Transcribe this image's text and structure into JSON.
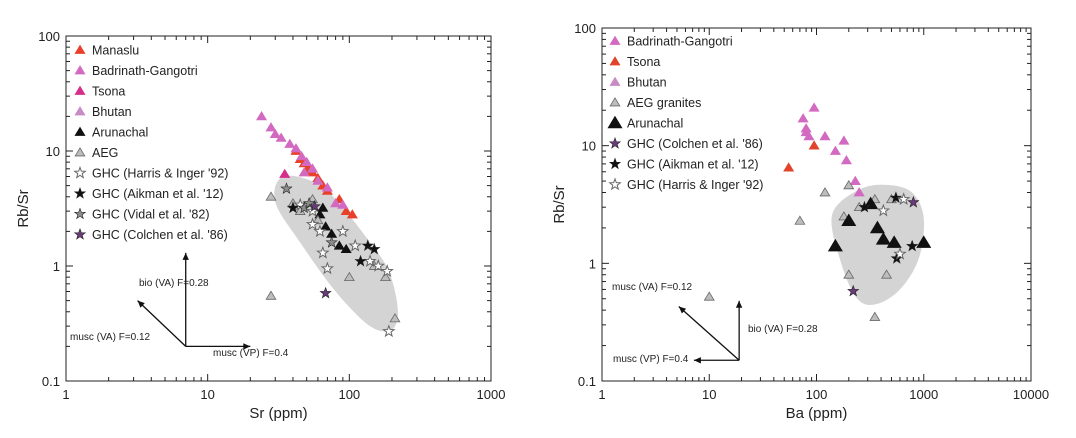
{
  "chart_data": [
    {
      "type": "scatter",
      "xlabel": "Sr (ppm)",
      "ylabel": "Rb/Sr",
      "xscale": "log",
      "yscale": "log",
      "xlim": [
        1,
        1000
      ],
      "ylim": [
        0.1,
        100
      ],
      "xticks": [
        "1",
        "10",
        "100",
        "1000"
      ],
      "yticks": [
        "0.1",
        "1",
        "10",
        "100"
      ],
      "legend_position": "top-left",
      "series": [
        {
          "name": "Manaslu",
          "marker": "triangle",
          "color": "#e8402a",
          "points": [
            [
              42,
              10
            ],
            [
              45,
              8.5
            ],
            [
              48,
              7.8
            ],
            [
              52,
              7.0
            ],
            [
              55,
              6.5
            ],
            [
              60,
              5.8
            ],
            [
              65,
              5.0
            ],
            [
              70,
              4.5
            ],
            [
              85,
              3.8
            ],
            [
              95,
              3.0
            ],
            [
              105,
              2.8
            ],
            [
              50,
              6.8
            ]
          ]
        },
        {
          "name": "Badrinath-Gangotri",
          "marker": "triangle",
          "color": "#d36ac2",
          "points": [
            [
              24,
              20
            ],
            [
              28,
              16
            ],
            [
              33,
              13
            ],
            [
              38,
              11.5
            ],
            [
              42,
              10.5
            ],
            [
              30,
              14
            ],
            [
              46,
              9
            ],
            [
              50,
              8
            ],
            [
              55,
              7
            ],
            [
              48,
              6.5
            ],
            [
              60,
              5.5
            ],
            [
              70,
              4.8
            ],
            [
              80,
              3.5
            ],
            [
              90,
              3.4
            ]
          ]
        },
        {
          "name": "Tsona",
          "marker": "triangle",
          "color": "#d42f8a",
          "points": [
            [
              35,
              6.3
            ]
          ]
        },
        {
          "name": "Bhutan",
          "marker": "triangle",
          "color": "#c98bc4",
          "points": []
        },
        {
          "name": "Arunachal",
          "marker": "triangle",
          "color": "#111111",
          "points": [
            [
              65,
              3.2
            ],
            [
              68,
              2.2
            ],
            [
              75,
              1.9
            ],
            [
              85,
              1.5
            ],
            [
              62,
              2.8
            ],
            [
              95,
              1.4
            ]
          ]
        },
        {
          "name": "AEG",
          "marker": "triangle",
          "color": "#bdbdbd",
          "points": [
            [
              28,
              4.0
            ],
            [
              28,
              0.55
            ],
            [
              40,
              3.5
            ],
            [
              45,
              3.0
            ],
            [
              60,
              2.5
            ],
            [
              100,
              0.8
            ],
            [
              210,
              0.35
            ],
            [
              150,
              1.0
            ],
            [
              180,
              0.8
            ],
            [
              55,
              3.8
            ]
          ]
        },
        {
          "name": "GHC (Harris & Inger '92)",
          "marker": "star-open",
          "color": "#666666",
          "points": [
            [
              45,
              3.4
            ],
            [
              55,
              3.0
            ],
            [
              62,
              2.0
            ],
            [
              90,
              2.0
            ],
            [
              110,
              1.5
            ],
            [
              140,
              1.1
            ],
            [
              160,
              1.0
            ],
            [
              185,
              0.9
            ],
            [
              190,
              0.27
            ],
            [
              65,
              1.3
            ],
            [
              70,
              0.95
            ],
            [
              55,
              2.3
            ]
          ]
        },
        {
          "name": "GHC (Aikman et al. '12)",
          "marker": "star",
          "color": "#111111",
          "points": [
            [
              40,
              3.2
            ],
            [
              120,
              1.1
            ],
            [
              135,
              1.5
            ],
            [
              150,
              1.4
            ]
          ]
        },
        {
          "name": "GHC (Vidal et al. '82)",
          "marker": "star",
          "color": "#8c8c8c",
          "points": [
            [
              36,
              4.7
            ],
            [
              48,
              3.2
            ],
            [
              52,
              3.5
            ],
            [
              75,
              1.6
            ]
          ]
        },
        {
          "name": "GHC (Colchen et al. '86)",
          "marker": "star",
          "color": "#6b3a7a",
          "points": [
            [
              68,
              0.58
            ],
            [
              57,
              3.3
            ]
          ]
        }
      ],
      "region": [
        [
          34,
          6.0
        ],
        [
          60,
          5.2
        ],
        [
          90,
          3.2
        ],
        [
          140,
          1.6
        ],
        [
          190,
          0.9
        ],
        [
          220,
          0.42
        ],
        [
          200,
          0.28
        ],
        [
          140,
          0.3
        ],
        [
          80,
          0.6
        ],
        [
          45,
          1.6
        ],
        [
          30,
          3.6
        ]
      ],
      "vectors": [
        {
          "label": "bio (VA) F=0.28",
          "to": [
            7.0,
            1.3
          ]
        },
        {
          "label": "musc (VA) F=0.12",
          "to": [
            3.2,
            0.5
          ]
        },
        {
          "label": "musc (VP) F=0.4",
          "to": [
            20.0,
            0.2
          ]
        }
      ],
      "vector_origin": [
        7.0,
        0.2
      ]
    },
    {
      "type": "scatter",
      "xlabel": "Ba (ppm)",
      "ylabel": "Rb/Sr",
      "xscale": "log",
      "yscale": "log",
      "xlim": [
        1,
        10000
      ],
      "ylim": [
        0.1,
        100
      ],
      "xticks": [
        "1",
        "10",
        "100",
        "1000",
        "10000"
      ],
      "yticks": [
        "0.1",
        "1",
        "10",
        "100"
      ],
      "legend_position": "top-left",
      "series": [
        {
          "name": "Badrinath-Gangotri",
          "marker": "triangle",
          "color": "#d36ac2",
          "points": [
            [
              75,
              17
            ],
            [
              80,
              14
            ],
            [
              85,
              12
            ],
            [
              95,
              21
            ],
            [
              120,
              12
            ],
            [
              150,
              9
            ],
            [
              180,
              11
            ],
            [
              230,
              5
            ],
            [
              250,
              4
            ],
            [
              190,
              7.5
            ],
            [
              80,
              13
            ]
          ]
        },
        {
          "name": "Tsona",
          "marker": "triangle",
          "color": "#e0452c",
          "points": [
            [
              55,
              6.5
            ],
            [
              95,
              10
            ]
          ]
        },
        {
          "name": "Bhutan",
          "marker": "triangle",
          "color": "#c98bc4",
          "points": []
        },
        {
          "name": "AEG granites",
          "marker": "triangle",
          "color": "#bdbdbd",
          "points": [
            [
              70,
              2.3
            ],
            [
              120,
              4.0
            ],
            [
              180,
              2.5
            ],
            [
              200,
              4.6
            ],
            [
              250,
              3.0
            ],
            [
              350,
              3.5
            ],
            [
              500,
              3.5
            ],
            [
              350,
              0.35
            ],
            [
              450,
              0.8
            ],
            [
              10,
              0.52
            ],
            [
              200,
              0.8
            ]
          ]
        },
        {
          "name": "Arunachal",
          "marker": "triangle-large",
          "color": "#111111",
          "points": [
            [
              150,
              1.4
            ],
            [
              200,
              2.3
            ],
            [
              320,
              3.2
            ],
            [
              370,
              2.0
            ],
            [
              420,
              1.6
            ],
            [
              530,
              1.5
            ],
            [
              1000,
              1.5
            ]
          ]
        },
        {
          "name": "GHC (Colchen et al. '86)",
          "marker": "star",
          "color": "#6b3a7a",
          "points": [
            [
              220,
              0.58
            ],
            [
              800,
              3.3
            ]
          ]
        },
        {
          "name": "GHC (Aikman et al. '12)",
          "marker": "star",
          "color": "#111111",
          "points": [
            [
              280,
              3.0
            ],
            [
              550,
              3.6
            ],
            [
              560,
              1.1
            ],
            [
              780,
              1.4
            ]
          ]
        },
        {
          "name": "GHC (Harris & Inger '92)",
          "marker": "star-open",
          "color": "#666666",
          "points": [
            [
              600,
              1.2
            ],
            [
              650,
              3.5
            ],
            [
              420,
              2.8
            ]
          ]
        }
      ],
      "region": [
        [
          140,
          2.6
        ],
        [
          260,
          4.3
        ],
        [
          500,
          4.6
        ],
        [
          800,
          3.9
        ],
        [
          1000,
          2.4
        ],
        [
          900,
          1.1
        ],
        [
          600,
          0.6
        ],
        [
          360,
          0.45
        ],
        [
          240,
          0.5
        ],
        [
          170,
          1.0
        ]
      ],
      "vectors": [
        {
          "label": "musc (VA) F=0.12",
          "to": [
            5.2,
            0.43
          ]
        },
        {
          "label": "bio (VA) F=0.28",
          "to": [
            19.0,
            0.48
          ]
        },
        {
          "label": "musc (VP) F=0.4",
          "to": [
            7.2,
            0.15
          ]
        }
      ],
      "vector_origin": [
        19.0,
        0.15
      ]
    }
  ]
}
